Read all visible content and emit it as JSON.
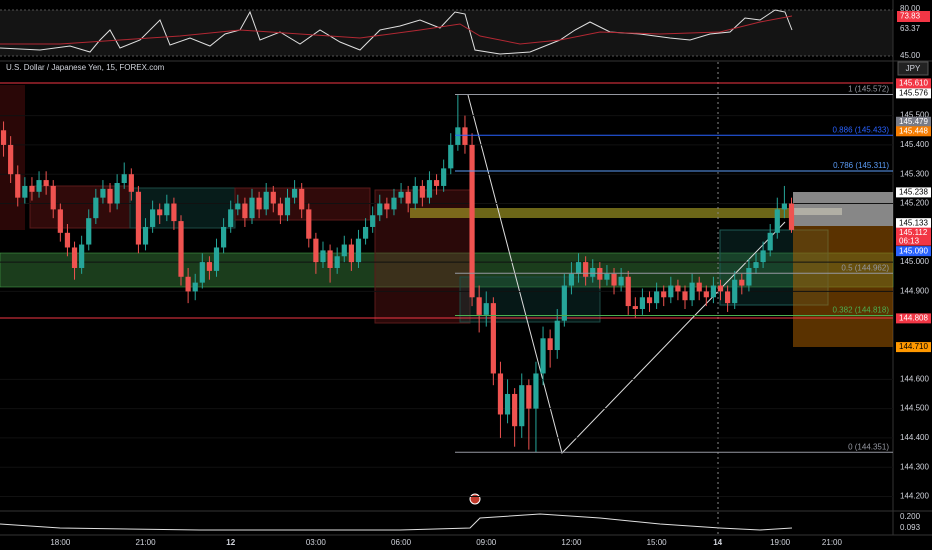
{
  "header": {
    "symbol": "U.S. Dollar / Japanese Yen, 15, FOREX.com",
    "currency": "JPY"
  },
  "chart_data": {
    "type": "candlestick",
    "up_color": "#26a69a",
    "down_color": "#ef5350",
    "ylim": [
      144.154,
      145.683
    ],
    "xlim": [
      -0.5,
      125.3
    ],
    "yticks": [
      {
        "value": 145.5,
        "label": "145.500"
      },
      {
        "value": 145.4,
        "label": "145.400"
      },
      {
        "value": 145.3,
        "label": "145.300"
      },
      {
        "value": 145.2,
        "label": "145.200"
      },
      {
        "value": 145.0,
        "label": "145.000"
      },
      {
        "value": 144.9,
        "label": "144.900"
      },
      {
        "value": 144.6,
        "label": "144.600"
      },
      {
        "value": 144.5,
        "label": "144.500"
      },
      {
        "value": 144.4,
        "label": "144.400"
      },
      {
        "value": 144.3,
        "label": "144.300"
      },
      {
        "value": 144.2,
        "label": "144.200"
      }
    ],
    "xticks": [
      {
        "value": 8,
        "label": "18:00"
      },
      {
        "value": 20,
        "label": "21:00"
      },
      {
        "value": 32,
        "label": "12"
      },
      {
        "value": 44,
        "label": "03:00"
      },
      {
        "value": 56,
        "label": "06:00"
      },
      {
        "value": 68,
        "label": "09:00"
      },
      {
        "value": 80,
        "label": "12:00"
      },
      {
        "value": 92,
        "label": "15:00"
      },
      {
        "value": 100.6,
        "label": "14"
      },
      {
        "value": 109.4,
        "label": "19:00"
      },
      {
        "value": 116.7,
        "label": "21:00"
      }
    ],
    "candles": [
      [
        145.45,
        145.48,
        145.36,
        145.4
      ],
      [
        145.4,
        145.43,
        145.27,
        145.3
      ],
      [
        145.3,
        145.33,
        145.19,
        145.22
      ],
      [
        145.22,
        145.29,
        145.2,
        145.26
      ],
      [
        145.26,
        145.29,
        145.21,
        145.24
      ],
      [
        145.24,
        145.31,
        145.22,
        145.28
      ],
      [
        145.28,
        145.31,
        145.23,
        145.26
      ],
      [
        145.26,
        145.28,
        145.15,
        145.18
      ],
      [
        145.18,
        145.2,
        145.07,
        145.1
      ],
      [
        145.1,
        145.13,
        145.02,
        145.05
      ],
      [
        145.05,
        145.07,
        144.94,
        144.98
      ],
      [
        144.98,
        145.09,
        144.96,
        145.06
      ],
      [
        145.06,
        145.18,
        145.04,
        145.15
      ],
      [
        145.15,
        145.25,
        145.13,
        145.22
      ],
      [
        145.22,
        145.28,
        145.2,
        145.25
      ],
      [
        145.25,
        145.27,
        145.17,
        145.2
      ],
      [
        145.2,
        145.3,
        145.18,
        145.27
      ],
      [
        145.27,
        145.34,
        145.25,
        145.3
      ],
      [
        145.3,
        145.32,
        145.21,
        145.24
      ],
      [
        145.24,
        145.26,
        145.03,
        145.06
      ],
      [
        145.06,
        145.15,
        145.04,
        145.12
      ],
      [
        145.12,
        145.21,
        145.1,
        145.18
      ],
      [
        145.18,
        145.2,
        145.13,
        145.16
      ],
      [
        145.16,
        145.23,
        145.14,
        145.2
      ],
      [
        145.2,
        145.22,
        145.11,
        145.14
      ],
      [
        145.14,
        145.16,
        144.92,
        144.95
      ],
      [
        144.95,
        144.98,
        144.86,
        144.9
      ],
      [
        144.9,
        144.96,
        144.87,
        144.93
      ],
      [
        144.93,
        145.03,
        144.91,
        145.0
      ],
      [
        145.0,
        145.02,
        144.94,
        144.97
      ],
      [
        144.97,
        145.08,
        144.95,
        145.05
      ],
      [
        145.05,
        145.15,
        145.03,
        145.12
      ],
      [
        145.12,
        145.21,
        145.1,
        145.18
      ],
      [
        145.18,
        145.23,
        145.16,
        145.2
      ],
      [
        145.2,
        145.22,
        145.12,
        145.15
      ],
      [
        145.15,
        145.25,
        145.13,
        145.22
      ],
      [
        145.22,
        145.24,
        145.15,
        145.18
      ],
      [
        145.18,
        145.27,
        145.16,
        145.24
      ],
      [
        145.24,
        145.26,
        145.17,
        145.2
      ],
      [
        145.2,
        145.22,
        145.13,
        145.16
      ],
      [
        145.16,
        145.25,
        145.14,
        145.22
      ],
      [
        145.22,
        145.28,
        145.2,
        145.25
      ],
      [
        145.25,
        145.27,
        145.15,
        145.18
      ],
      [
        145.18,
        145.2,
        145.05,
        145.08
      ],
      [
        145.08,
        145.1,
        144.96,
        145.0
      ],
      [
        145.0,
        145.07,
        144.98,
        145.04
      ],
      [
        145.04,
        145.06,
        144.93,
        144.98
      ],
      [
        144.98,
        145.05,
        144.96,
        145.02
      ],
      [
        145.02,
        145.09,
        145.0,
        145.06
      ],
      [
        145.06,
        145.08,
        144.97,
        145.0
      ],
      [
        145.0,
        145.11,
        144.98,
        145.08
      ],
      [
        145.08,
        145.15,
        145.06,
        145.12
      ],
      [
        145.12,
        145.19,
        145.1,
        145.16
      ],
      [
        145.16,
        145.23,
        145.14,
        145.2
      ],
      [
        145.2,
        145.22,
        145.15,
        145.18
      ],
      [
        145.18,
        145.25,
        145.16,
        145.22
      ],
      [
        145.22,
        145.27,
        145.2,
        145.24
      ],
      [
        145.24,
        145.26,
        145.17,
        145.2
      ],
      [
        145.2,
        145.29,
        145.18,
        145.26
      ],
      [
        145.26,
        145.28,
        145.19,
        145.22
      ],
      [
        145.22,
        145.31,
        145.2,
        145.28
      ],
      [
        145.28,
        145.3,
        145.23,
        145.26
      ],
      [
        145.26,
        145.35,
        145.24,
        145.32
      ],
      [
        145.32,
        145.44,
        145.3,
        145.4
      ],
      [
        145.4,
        145.57,
        145.38,
        145.46
      ],
      [
        145.46,
        145.5,
        145.37,
        145.4
      ],
      [
        145.4,
        145.44,
        144.85,
        144.88
      ],
      [
        144.88,
        144.92,
        144.76,
        144.82
      ],
      [
        144.82,
        144.9,
        144.78,
        144.86
      ],
      [
        144.86,
        144.88,
        144.58,
        144.62
      ],
      [
        144.62,
        144.66,
        144.4,
        144.48
      ],
      [
        144.48,
        144.6,
        144.45,
        144.55
      ],
      [
        144.55,
        144.57,
        144.37,
        144.44
      ],
      [
        144.44,
        144.62,
        144.4,
        144.58
      ],
      [
        144.58,
        144.6,
        144.36,
        144.5
      ],
      [
        144.5,
        144.66,
        144.35,
        144.62
      ],
      [
        144.62,
        144.78,
        144.58,
        144.74
      ],
      [
        144.74,
        144.77,
        144.64,
        144.7
      ],
      [
        144.7,
        144.84,
        144.67,
        144.8
      ],
      [
        144.8,
        144.96,
        144.78,
        144.92
      ],
      [
        144.92,
        145.0,
        144.89,
        144.96
      ],
      [
        144.96,
        145.03,
        144.93,
        145.0
      ],
      [
        145.0,
        145.02,
        144.92,
        144.95
      ],
      [
        144.95,
        145.01,
        144.93,
        144.98
      ],
      [
        144.98,
        145.0,
        144.91,
        144.94
      ],
      [
        144.94,
        144.99,
        144.92,
        144.96
      ],
      [
        144.96,
        144.98,
        144.89,
        144.92
      ],
      [
        144.92,
        144.98,
        144.9,
        144.95
      ],
      [
        144.95,
        144.97,
        144.82,
        144.85
      ],
      [
        144.85,
        144.88,
        144.81,
        144.84
      ],
      [
        144.84,
        144.91,
        144.82,
        144.88
      ],
      [
        144.88,
        144.9,
        144.83,
        144.86
      ],
      [
        144.86,
        144.93,
        144.84,
        144.9
      ],
      [
        144.9,
        144.92,
        144.85,
        144.88
      ],
      [
        144.88,
        144.95,
        144.86,
        144.92
      ],
      [
        144.92,
        144.94,
        144.87,
        144.9
      ],
      [
        144.9,
        144.92,
        144.84,
        144.87
      ],
      [
        144.87,
        144.96,
        144.85,
        144.93
      ],
      [
        144.93,
        144.95,
        144.87,
        144.9
      ],
      [
        144.9,
        144.92,
        144.85,
        144.88
      ],
      [
        144.88,
        144.95,
        144.86,
        144.92
      ],
      [
        144.92,
        144.94,
        144.87,
        144.9
      ],
      [
        144.9,
        144.92,
        144.83,
        144.86
      ],
      [
        144.86,
        144.97,
        144.84,
        144.94
      ],
      [
        144.94,
        144.96,
        144.89,
        144.92
      ],
      [
        144.92,
        145.01,
        144.9,
        144.98
      ],
      [
        144.98,
        145.03,
        144.96,
        145.0
      ],
      [
        145.0,
        145.07,
        144.98,
        145.04
      ],
      [
        145.04,
        145.13,
        145.02,
        145.1
      ],
      [
        145.1,
        145.22,
        145.08,
        145.18
      ],
      [
        145.18,
        145.26,
        145.15,
        145.2
      ],
      [
        145.2,
        145.22,
        145.1,
        145.11
      ]
    ],
    "fib_levels": [
      {
        "label": "1 (145.572)",
        "value": 145.572,
        "color": "#9598a1"
      },
      {
        "label": "0.886 (145.433)",
        "value": 145.433,
        "color": "#2962ff"
      },
      {
        "label": "0.786 (145.311)",
        "value": 145.311,
        "color": "#5b9cf6"
      },
      {
        "label": "0.5 (144.962)",
        "value": 144.962,
        "color": "#9598a1"
      },
      {
        "label": "0.382 (144.818)",
        "value": 144.818,
        "color": "#4caf50"
      },
      {
        "label": "0 (144.351)",
        "value": 144.351,
        "color": "#9598a1"
      }
    ],
    "price_badges": [
      {
        "label": "145.610",
        "value": 145.61,
        "color": "#f23645"
      },
      {
        "label": "145.576",
        "value": 145.576,
        "color": "#ffffff"
      },
      {
        "label": "145.479",
        "value": 145.479,
        "color": "#787b86"
      },
      {
        "label": "145.448",
        "value": 145.448,
        "color": "#f57c00"
      },
      {
        "label": "145.238",
        "value": 145.238,
        "color": "#ffffff"
      },
      {
        "label": "145.133",
        "value": 145.133,
        "color": "#ffffff"
      },
      {
        "label": "145.112",
        "value": 145.112,
        "color": "#f23645"
      },
      {
        "label": "145.090",
        "value": 145.09,
        "color": "#2962ff"
      },
      {
        "label": "144.808",
        "value": 144.808,
        "color": "#f23645"
      },
      {
        "label": "144.710",
        "value": 144.71,
        "color": "#ff9800"
      }
    ],
    "countdown": "06:13"
  },
  "rsi_pane": {
    "upper": "80.00",
    "lower": "45.00",
    "value": "73.83",
    "signal": "63.37"
  },
  "volume_pane": {
    "upper": "0.200",
    "value": "0.093"
  }
}
